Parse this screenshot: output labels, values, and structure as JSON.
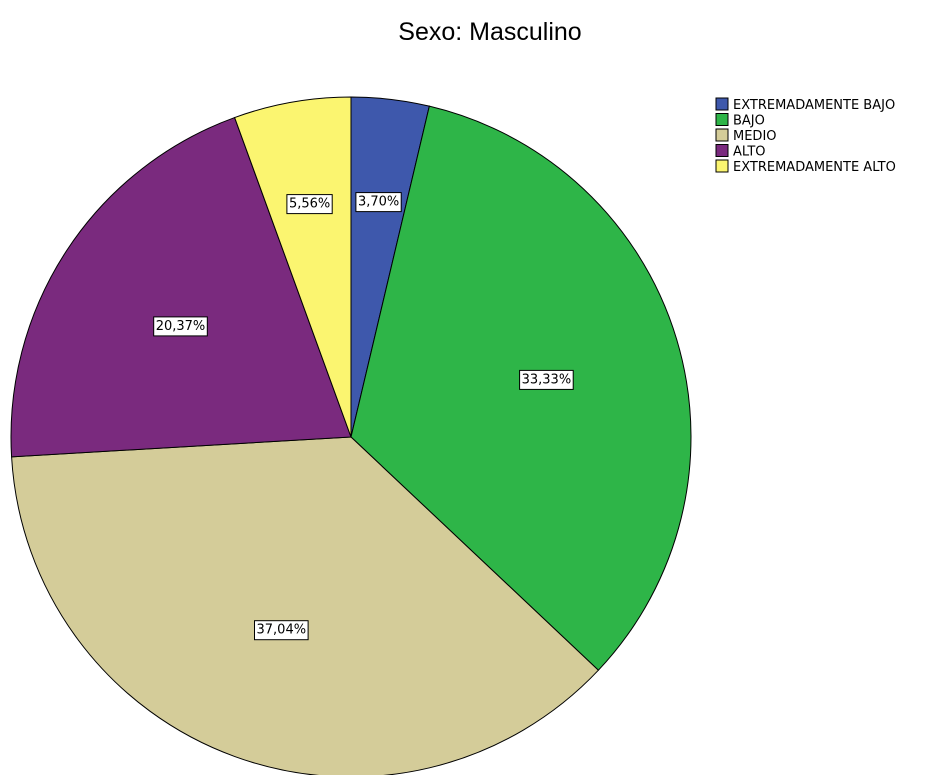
{
  "chart_data": {
    "type": "pie",
    "title": "Sexo: Masculino",
    "categories": [
      "EXTREMADAMENTE BAJO",
      "BAJO",
      "MEDIO",
      "ALTO",
      "EXTREMADAMENTE ALTO"
    ],
    "values": [
      3.7,
      33.33,
      37.04,
      20.37,
      5.56
    ],
    "labels": [
      "3,70%",
      "33,33%",
      "37,04%",
      "20,37%",
      "5,56%"
    ],
    "colors": [
      "#3e58ac",
      "#2eb548",
      "#d4cc99",
      "#7a2a7e",
      "#fbf570"
    ],
    "start_angle": "12 o'clock",
    "direction": "clockwise",
    "legend_position": "top-right"
  }
}
